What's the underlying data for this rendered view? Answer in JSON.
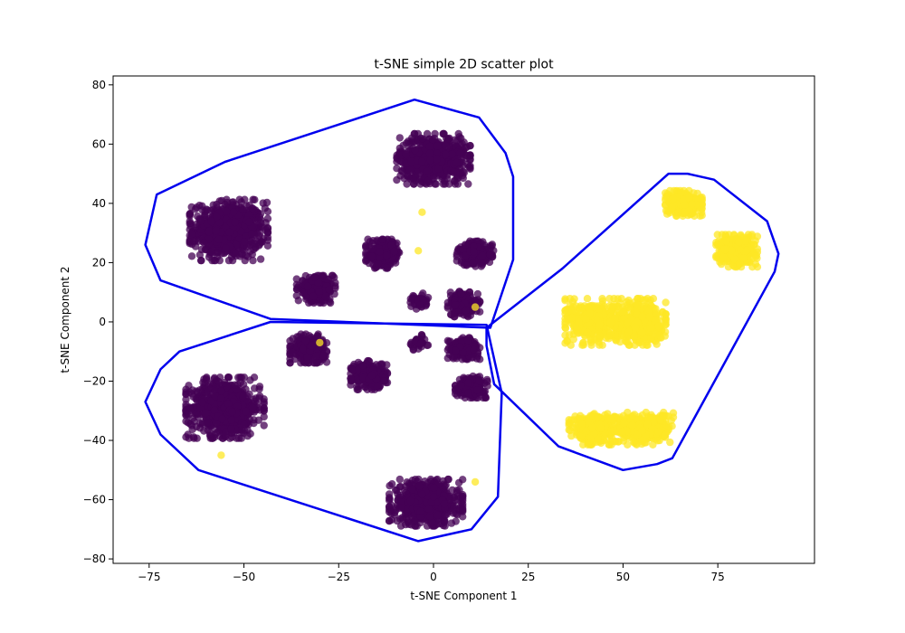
{
  "chart_data": {
    "type": "scatter",
    "title": "t-SNE simple 2D scatter plot",
    "xlabel": "t-SNE Component 1",
    "ylabel": "t-SNE Component 2",
    "xlim": [
      -84.5,
      100.5
    ],
    "ylim": [
      -81.5,
      83
    ],
    "xticks": [
      -75,
      -50,
      -25,
      0,
      25,
      50,
      75
    ],
    "yticks": [
      -80,
      -60,
      -40,
      -20,
      0,
      20,
      40,
      60,
      80
    ],
    "grid": false,
    "legend": "none",
    "point_alpha": 0.75,
    "class_colors": {
      "0": "#440154",
      "1": "#fde725"
    },
    "hull_color": "#0000ee",
    "clusters": [
      {
        "class": 0,
        "center": [
          -54,
          31
        ],
        "spread": [
          8.5,
          8.5
        ],
        "count": 700
      },
      {
        "class": 0,
        "center": [
          -55,
          -29
        ],
        "spread": [
          8.5,
          8.5
        ],
        "count": 700
      },
      {
        "class": 0,
        "center": [
          0,
          55
        ],
        "spread": [
          8,
          7
        ],
        "count": 650
      },
      {
        "class": 0,
        "center": [
          -2,
          -61
        ],
        "spread": [
          8,
          6.5
        ],
        "count": 650
      },
      {
        "class": 0,
        "center": [
          -31,
          11
        ],
        "spread": [
          4.2,
          3.8
        ],
        "count": 250
      },
      {
        "class": 0,
        "center": [
          -13,
          23
        ],
        "spread": [
          4,
          4
        ],
        "count": 250
      },
      {
        "class": 0,
        "center": [
          -33,
          -9
        ],
        "spread": [
          4,
          4
        ],
        "count": 250
      },
      {
        "class": 0,
        "center": [
          -17,
          -18
        ],
        "spread": [
          4,
          4
        ],
        "count": 250
      },
      {
        "class": 0,
        "center": [
          11,
          23
        ],
        "spread": [
          4,
          3.5
        ],
        "count": 220
      },
      {
        "class": 0,
        "center": [
          8,
          6
        ],
        "spread": [
          3.5,
          3.5
        ],
        "count": 200
      },
      {
        "class": 0,
        "center": [
          8,
          -9
        ],
        "spread": [
          3.5,
          3
        ],
        "count": 200
      },
      {
        "class": 0,
        "center": [
          10,
          -22
        ],
        "spread": [
          3.5,
          3
        ],
        "count": 200
      },
      {
        "class": 0,
        "center": [
          -4,
          7
        ],
        "spread": [
          2.2,
          2.2
        ],
        "count": 40
      },
      {
        "class": 0,
        "center": [
          -4,
          -7
        ],
        "spread": [
          2.2,
          2.2
        ],
        "count": 40
      },
      {
        "class": 1,
        "center": [
          42,
          0
        ],
        "spread": [
          6,
          6.5
        ],
        "count": 400
      },
      {
        "class": 1,
        "center": [
          54,
          0
        ],
        "spread": [
          6,
          6.5
        ],
        "count": 400
      },
      {
        "class": 1,
        "center": [
          43,
          -36
        ],
        "spread": [
          6,
          4.5
        ],
        "count": 350
      },
      {
        "class": 1,
        "center": [
          56,
          -36
        ],
        "spread": [
          6,
          4.5
        ],
        "count": 350
      },
      {
        "class": 1,
        "center": [
          66,
          40
        ],
        "spread": [
          4,
          3.5
        ],
        "count": 300
      },
      {
        "class": 1,
        "center": [
          80,
          24
        ],
        "spread": [
          4.5,
          4.5
        ],
        "count": 350
      }
    ],
    "outliers": [
      {
        "class": 1,
        "x": -3,
        "y": 37
      },
      {
        "class": 1,
        "x": -4,
        "y": 24
      },
      {
        "class": 1,
        "x": -56,
        "y": -45
      },
      {
        "class": 1,
        "x": 11,
        "y": -54
      },
      {
        "class": 1,
        "x": -30,
        "y": -7
      },
      {
        "class": 1,
        "x": 11,
        "y": 5
      }
    ],
    "hulls": [
      {
        "class": 0,
        "points": [
          [
            -76,
            26
          ],
          [
            -73,
            43
          ],
          [
            -55,
            54
          ],
          [
            -5,
            75
          ],
          [
            12,
            69
          ],
          [
            19,
            57
          ],
          [
            21,
            49
          ],
          [
            21,
            21
          ],
          [
            15,
            -2
          ],
          [
            -43,
            1
          ],
          [
            -72,
            14
          ]
        ]
      },
      {
        "class": 0,
        "points": [
          [
            -76,
            -27
          ],
          [
            -72,
            -16
          ],
          [
            -67,
            -10
          ],
          [
            -43,
            0
          ],
          [
            14,
            -1
          ],
          [
            18,
            -24
          ],
          [
            17,
            -59
          ],
          [
            10,
            -70
          ],
          [
            -4,
            -74
          ],
          [
            -62,
            -50
          ],
          [
            -72,
            -38
          ]
        ]
      },
      {
        "class": 1,
        "points": [
          [
            14,
            -2
          ],
          [
            34,
            18
          ],
          [
            62,
            50
          ],
          [
            67,
            50
          ],
          [
            74,
            48
          ],
          [
            88,
            34
          ],
          [
            91,
            23
          ],
          [
            90,
            17
          ],
          [
            63,
            -46
          ],
          [
            59,
            -48
          ],
          [
            50,
            -50
          ],
          [
            33,
            -42
          ],
          [
            16,
            -21
          ],
          [
            14,
            -8
          ]
        ]
      }
    ]
  }
}
